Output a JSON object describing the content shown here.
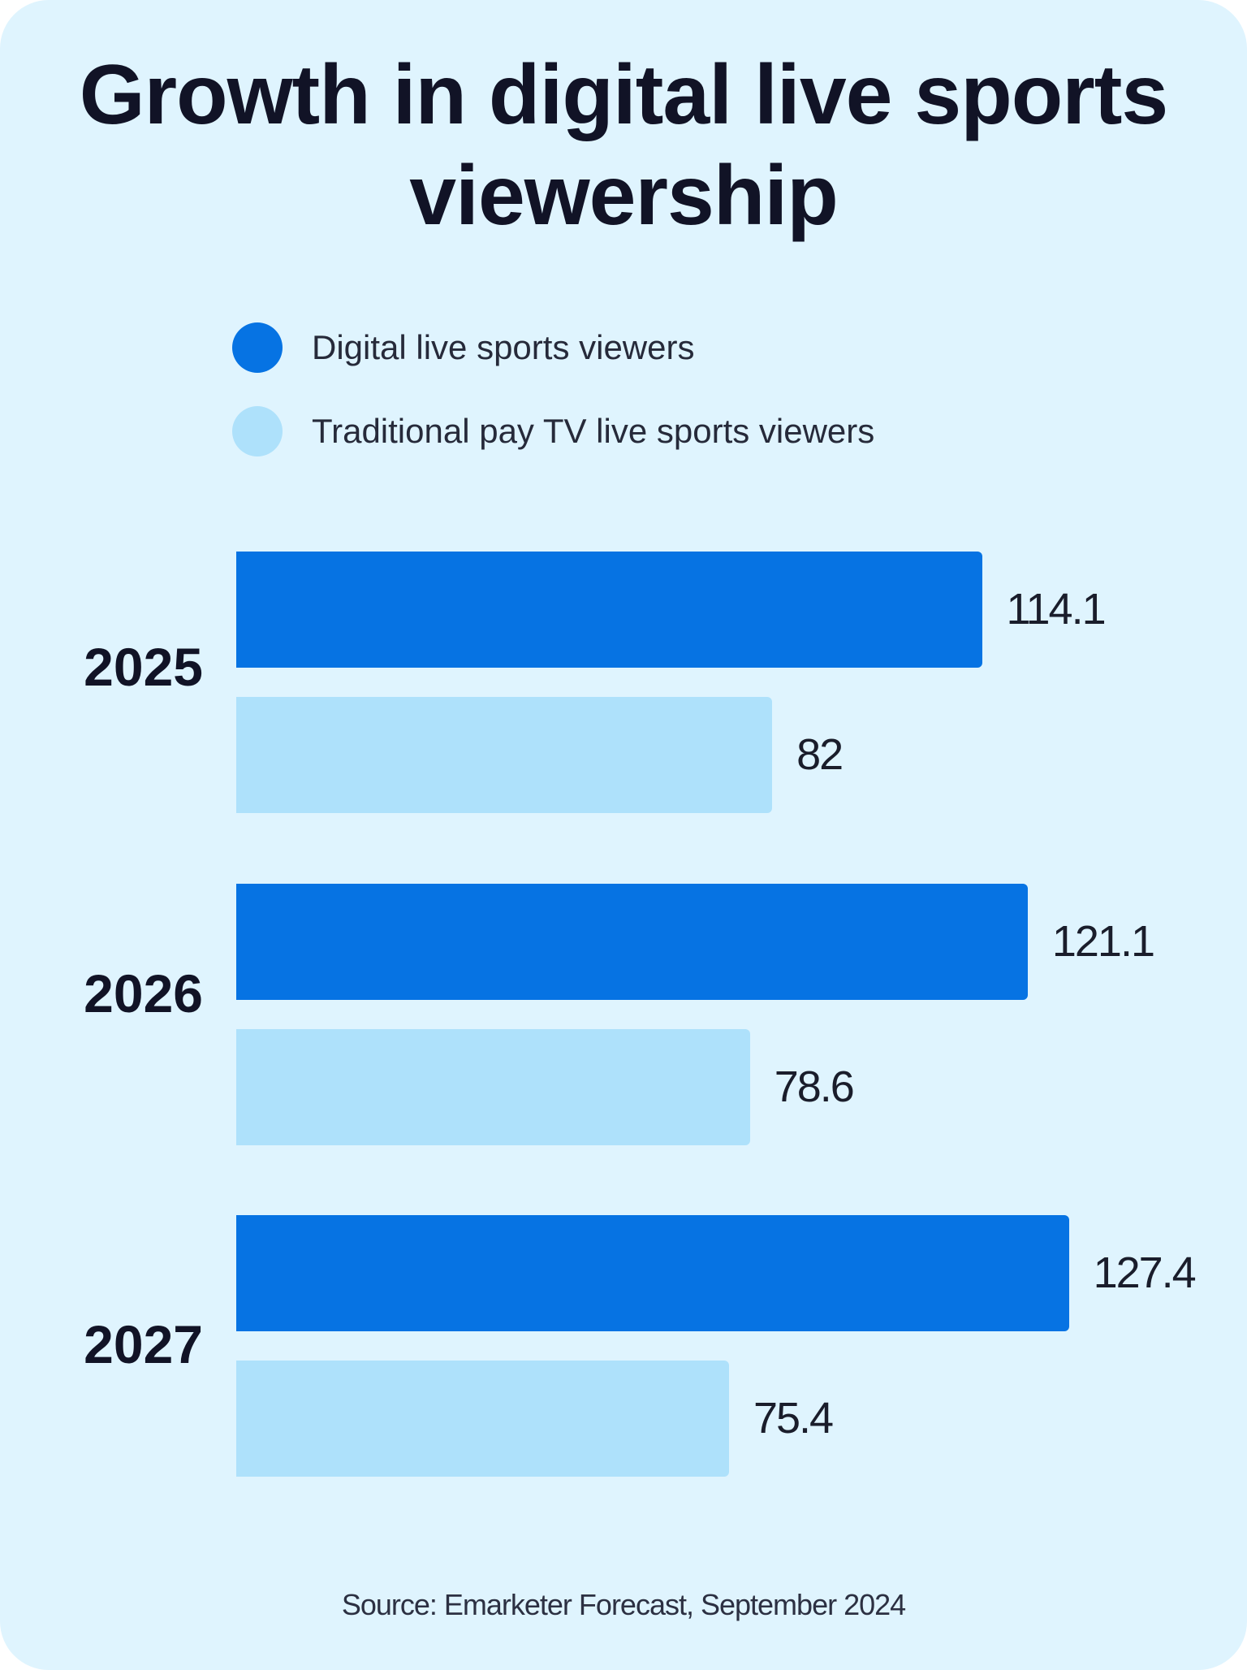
{
  "chart_data": {
    "type": "bar",
    "orientation": "horizontal",
    "title": "Growth in digital live sports viewership",
    "categories": [
      "2025",
      "2026",
      "2027"
    ],
    "series": [
      {
        "name": "Digital live sports viewers",
        "values": [
          114.1,
          121.1,
          127.4
        ],
        "color": "#0673e3"
      },
      {
        "name": "Traditional pay TV live sports viewers",
        "values": [
          82,
          78.6,
          75.4
        ],
        "color": "#aee1fb"
      }
    ],
    "data_labels": [
      [
        "114.1",
        "121.1",
        "127.4"
      ],
      [
        "82",
        "78.6",
        "75.4"
      ]
    ],
    "legend_position": "top",
    "grid": false,
    "source": "Source: Emarketer Forecast, September 2024"
  }
}
